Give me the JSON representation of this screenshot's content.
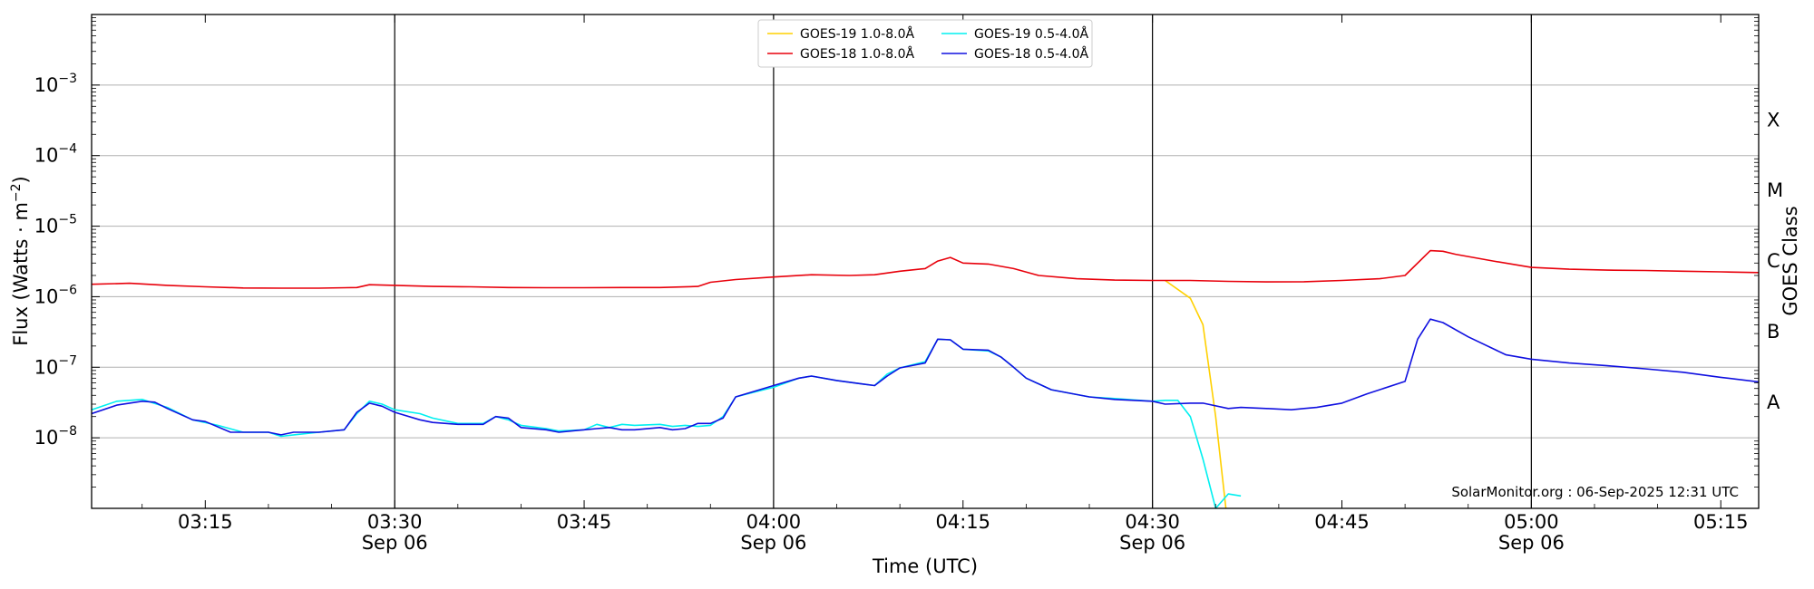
{
  "chart_data": {
    "type": "line",
    "xlabel": "Time (UTC)",
    "ylabel_text": "Flux (Watts · m",
    "ylabel_sup": "−2",
    "ylabel_close": ")",
    "right_label": "GOES Class",
    "watermark": "SolarMonitor.org : 06-Sep-2025 12:31 UTC",
    "x_range": [
      "03:06",
      "05:18"
    ],
    "ylim": [
      1e-09,
      0.01
    ],
    "log_y": true,
    "grid": "horizontal at decades; vertical lines at half-hours",
    "legend_position": "top-center",
    "x_ticks": [
      {
        "time": "03:15",
        "label": "03:15",
        "sub": ""
      },
      {
        "time": "03:30",
        "label": "03:30",
        "sub": "Sep 06"
      },
      {
        "time": "03:45",
        "label": "03:45",
        "sub": ""
      },
      {
        "time": "04:00",
        "label": "04:00",
        "sub": "Sep 06"
      },
      {
        "time": "04:15",
        "label": "04:15",
        "sub": ""
      },
      {
        "time": "04:30",
        "label": "04:30",
        "sub": "Sep 06"
      },
      {
        "time": "04:45",
        "label": "04:45",
        "sub": ""
      },
      {
        "time": "05:00",
        "label": "05:00",
        "sub": "Sep 06"
      },
      {
        "time": "05:15",
        "label": "05:15",
        "sub": ""
      }
    ],
    "y_ticks": [
      {
        "exp": -8,
        "label_base": "10",
        "label_exp": "−8"
      },
      {
        "exp": -7,
        "label_base": "10",
        "label_exp": "−7"
      },
      {
        "exp": -6,
        "label_base": "10",
        "label_exp": "−6"
      },
      {
        "exp": -5,
        "label_base": "10",
        "label_exp": "−5"
      },
      {
        "exp": -4,
        "label_base": "10",
        "label_exp": "−4"
      },
      {
        "exp": -3,
        "label_base": "10",
        "label_exp": "−3"
      }
    ],
    "goes_classes": [
      {
        "label": "A",
        "level": 3.2e-08
      },
      {
        "label": "B",
        "level": 3.2e-07
      },
      {
        "label": "C",
        "level": 3.2e-06
      },
      {
        "label": "M",
        "level": 3.2e-05
      },
      {
        "label": "X",
        "level": 0.00032
      }
    ],
    "series": [
      {
        "name": "GOES-19 1.0-8.0Å",
        "color": "#FFD000",
        "x": [
          "04:31",
          "04:33",
          "04:34",
          "04:35",
          "04:36"
        ],
        "values": [
          1.7e-06,
          9.5e-07,
          4e-07,
          2e-08,
          5e-10
        ]
      },
      {
        "name": "GOES-18 1.0-8.0Å",
        "color": "#E8000B",
        "x": [
          "03:06",
          "03:09",
          "03:12",
          "03:15",
          "03:18",
          "03:21",
          "03:24",
          "03:27",
          "03:28",
          "03:30",
          "03:33",
          "03:36",
          "03:39",
          "03:42",
          "03:45",
          "03:48",
          "03:51",
          "03:54",
          "03:55",
          "03:57",
          "04:00",
          "04:03",
          "04:06",
          "04:08",
          "04:10",
          "04:12",
          "04:13",
          "04:14",
          "04:15",
          "04:17",
          "04:19",
          "04:21",
          "04:24",
          "04:27",
          "04:30",
          "04:33",
          "04:36",
          "04:39",
          "04:42",
          "04:45",
          "04:48",
          "04:50",
          "04:52",
          "04:53",
          "04:54",
          "04:57",
          "05:00",
          "05:03",
          "05:06",
          "05:09",
          "05:12",
          "05:15",
          "05:18"
        ],
        "values": [
          1.5e-06,
          1.55e-06,
          1.45e-06,
          1.38e-06,
          1.33e-06,
          1.32e-06,
          1.32e-06,
          1.35e-06,
          1.48e-06,
          1.45e-06,
          1.4e-06,
          1.38e-06,
          1.35e-06,
          1.34e-06,
          1.34e-06,
          1.35e-06,
          1.35e-06,
          1.4e-06,
          1.6e-06,
          1.75e-06,
          1.9e-06,
          2.05e-06,
          2e-06,
          2.05e-06,
          2.3e-06,
          2.5e-06,
          3.2e-06,
          3.6e-06,
          3e-06,
          2.9e-06,
          2.5e-06,
          2e-06,
          1.8e-06,
          1.72e-06,
          1.7e-06,
          1.7e-06,
          1.65e-06,
          1.62e-06,
          1.63e-06,
          1.7e-06,
          1.8e-06,
          2e-06,
          4.5e-06,
          4.4e-06,
          4e-06,
          3.2e-06,
          2.6e-06,
          2.45e-06,
          2.38e-06,
          2.35e-06,
          2.3e-06,
          2.25e-06,
          2.2e-06
        ]
      },
      {
        "name": "GOES-19 0.5-4.0Å",
        "color": "#00F0F0",
        "x": [
          "03:06",
          "03:08",
          "03:10",
          "03:12",
          "03:14",
          "03:16",
          "03:18",
          "03:20",
          "03:21",
          "03:22",
          "03:24",
          "03:26",
          "03:27",
          "03:28",
          "03:29",
          "03:30",
          "03:32",
          "03:33",
          "03:35",
          "03:37",
          "03:38",
          "03:39",
          "03:40",
          "03:42",
          "03:43",
          "03:45",
          "03:46",
          "03:47",
          "03:48",
          "03:49",
          "03:51",
          "03:52",
          "03:53",
          "03:54",
          "03:55",
          "03:56",
          "03:57",
          "04:00",
          "04:02",
          "04:03",
          "04:05",
          "04:07",
          "04:08",
          "04:09",
          "04:10",
          "04:12",
          "04:13",
          "04:14",
          "04:15",
          "04:17",
          "04:18",
          "04:19",
          "04:20",
          "04:22",
          "04:25",
          "04:27",
          "04:30",
          "04:31",
          "04:32",
          "04:33",
          "04:34",
          "04:35",
          "04:36",
          "04:37"
        ],
        "values": [
          2.5e-08,
          3.3e-08,
          3.5e-08,
          2.7e-08,
          1.8e-08,
          1.5e-08,
          1.2e-08,
          1.2e-08,
          1.05e-08,
          1.1e-08,
          1.2e-08,
          1.3e-08,
          2.2e-08,
          3.3e-08,
          3e-08,
          2.5e-08,
          2.2e-08,
          1.9e-08,
          1.6e-08,
          1.6e-08,
          2e-08,
          1.8e-08,
          1.5e-08,
          1.35e-08,
          1.25e-08,
          1.3e-08,
          1.55e-08,
          1.4e-08,
          1.55e-08,
          1.5e-08,
          1.55e-08,
          1.45e-08,
          1.5e-08,
          1.45e-08,
          1.5e-08,
          2e-08,
          3.8e-08,
          5.2e-08,
          7e-08,
          7.5e-08,
          6.5e-08,
          5.8e-08,
          5.5e-08,
          8e-08,
          9.8e-08,
          1.2e-07,
          2.5e-07,
          2.45e-07,
          1.8e-07,
          1.7e-07,
          1.4e-07,
          1e-07,
          7e-08,
          4.8e-08,
          3.8e-08,
          3.6e-08,
          3.3e-08,
          3.4e-08,
          3.4e-08,
          2e-08,
          5e-09,
          1e-09,
          1.6e-09,
          1.5e-09
        ]
      },
      {
        "name": "GOES-18 0.5-4.0Å",
        "color": "#1010E0",
        "x": [
          "03:06",
          "03:08",
          "03:10",
          "03:11",
          "03:12",
          "03:14",
          "03:15",
          "03:17",
          "03:18",
          "03:20",
          "03:21",
          "03:22",
          "03:24",
          "03:26",
          "03:27",
          "03:28",
          "03:29",
          "03:30",
          "03:32",
          "03:33",
          "03:35",
          "03:37",
          "03:38",
          "03:39",
          "03:40",
          "03:42",
          "03:43",
          "03:45",
          "03:46",
          "03:47",
          "03:48",
          "03:49",
          "03:51",
          "03:52",
          "03:53",
          "03:54",
          "03:55",
          "03:56",
          "03:57",
          "04:00",
          "04:02",
          "04:03",
          "04:05",
          "04:07",
          "04:08",
          "04:09",
          "04:10",
          "04:12",
          "04:13",
          "04:14",
          "04:15",
          "04:17",
          "04:18",
          "04:19",
          "04:20",
          "04:22",
          "04:25",
          "04:27",
          "04:30",
          "04:31",
          "04:33",
          "04:34",
          "04:36",
          "04:37",
          "04:39",
          "04:41",
          "04:42",
          "04:43",
          "04:45",
          "04:47",
          "04:50",
          "04:51",
          "04:52",
          "04:53",
          "04:55",
          "04:58",
          "05:00",
          "05:03",
          "05:06",
          "05:09",
          "05:12",
          "05:15",
          "05:18"
        ],
        "values": [
          2.2e-08,
          2.9e-08,
          3.3e-08,
          3.2e-08,
          2.6e-08,
          1.8e-08,
          1.7e-08,
          1.2e-08,
          1.2e-08,
          1.2e-08,
          1.1e-08,
          1.2e-08,
          1.2e-08,
          1.3e-08,
          2.3e-08,
          3.1e-08,
          2.8e-08,
          2.3e-08,
          1.8e-08,
          1.65e-08,
          1.55e-08,
          1.55e-08,
          2e-08,
          1.9e-08,
          1.4e-08,
          1.3e-08,
          1.2e-08,
          1.3e-08,
          1.35e-08,
          1.4e-08,
          1.3e-08,
          1.3e-08,
          1.4e-08,
          1.3e-08,
          1.35e-08,
          1.6e-08,
          1.6e-08,
          1.9e-08,
          3.8e-08,
          5.5e-08,
          7e-08,
          7.5e-08,
          6.5e-08,
          5.8e-08,
          5.5e-08,
          7.5e-08,
          9.8e-08,
          1.15e-07,
          2.5e-07,
          2.45e-07,
          1.8e-07,
          1.75e-07,
          1.4e-07,
          1e-07,
          7e-08,
          4.8e-08,
          3.8e-08,
          3.5e-08,
          3.3e-08,
          3e-08,
          3.1e-08,
          3.1e-08,
          2.6e-08,
          2.7e-08,
          2.6e-08,
          2.5e-08,
          2.6e-08,
          2.7e-08,
          3.1e-08,
          4.2e-08,
          6.3e-08,
          2.5e-07,
          4.8e-07,
          4.3e-07,
          2.7e-07,
          1.5e-07,
          1.3e-07,
          1.15e-07,
          1.05e-07,
          9.5e-08,
          8.5e-08,
          7.2e-08,
          6.2e-08
        ]
      }
    ]
  }
}
